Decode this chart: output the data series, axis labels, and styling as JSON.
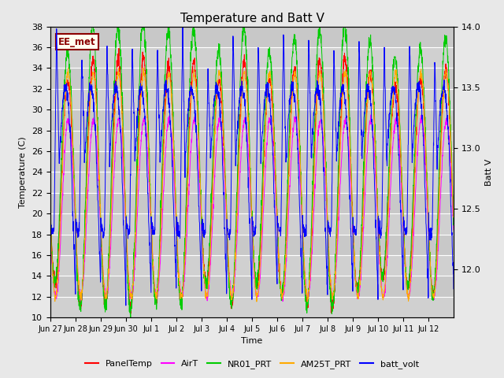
{
  "title": "Temperature and Batt V",
  "xlabel": "Time",
  "ylabel_left": "Temperature (C)",
  "ylabel_right": "Batt V",
  "ylim_left": [
    10,
    38
  ],
  "ylim_right": [
    11.6,
    14.0
  ],
  "background_color": "#e8e8e8",
  "plot_bg_color": "#d8d8d8",
  "grid_color": "#f0f0f0",
  "annotation_text": "EE_met",
  "annotation_color": "#8B0000",
  "annotation_bg": "#fffff0",
  "legend_entries": [
    "PanelTemp",
    "AirT",
    "NR01_PRT",
    "AM25T_PRT",
    "batt_volt"
  ],
  "line_colors": [
    "#ff0000",
    "#ff00ff",
    "#00cc00",
    "#ffaa00",
    "#0000ff"
  ],
  "n_days": 16,
  "samples_per_day": 144,
  "xtick_labels": [
    "Jun 27",
    "Jun 28",
    "Jun 29",
    "Jun 30",
    "Jul 1",
    "Jul 2",
    "Jul 3",
    "Jul 4",
    "Jul 5",
    "Jul 6",
    "Jul 7",
    "Jul 8",
    "Jul 9",
    "Jul 10",
    "Jul 11",
    "Jul 12"
  ],
  "title_fontsize": 11,
  "axis_fontsize": 8,
  "tick_fontsize": 8
}
